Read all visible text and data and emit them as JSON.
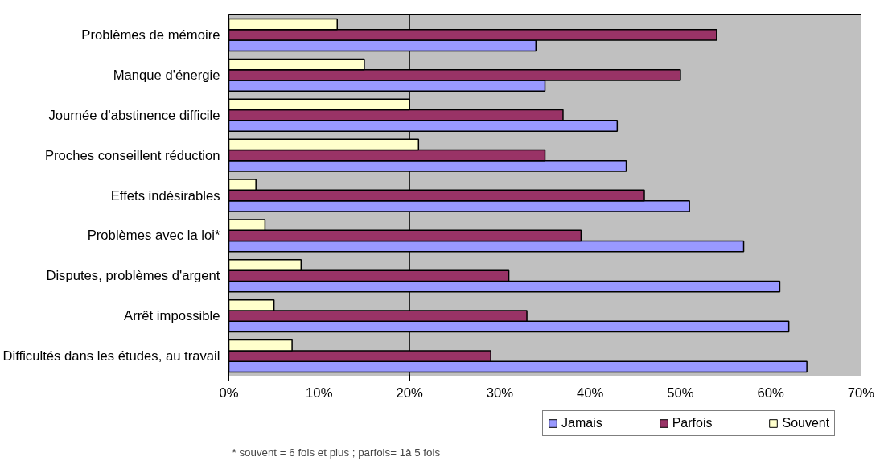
{
  "chart_data": {
    "type": "bar",
    "orientation": "horizontal",
    "categories": [
      "Problèmes de mémoire",
      "Manque d'énergie",
      "Journée d'abstinence difficile",
      "Proches conseillent réduction",
      "Effets indésirables",
      "Problèmes avec la loi*",
      "Disputes, problèmes d'argent",
      "Arrêt impossible",
      "Difficultés dans les études, au travail"
    ],
    "series": [
      {
        "name": "Jamais",
        "color": "#9999ff",
        "values": [
          34,
          35,
          43,
          44,
          51,
          57,
          61,
          62,
          64
        ]
      },
      {
        "name": "Parfois",
        "color": "#993366",
        "values": [
          54,
          50,
          37,
          35,
          46,
          39,
          31,
          33,
          29
        ]
      },
      {
        "name": "Souvent",
        "color": "#ffffcc",
        "values": [
          12,
          15,
          20,
          21,
          3,
          4,
          8,
          5,
          7
        ]
      }
    ],
    "xlim": [
      0,
      70
    ],
    "xticks": [
      {
        "value": 0,
        "label": "0%"
      },
      {
        "value": 10,
        "label": "10%"
      },
      {
        "value": 20,
        "label": "20%"
      },
      {
        "value": 30,
        "label": "30%"
      },
      {
        "value": 40,
        "label": "40%"
      },
      {
        "value": 50,
        "label": "50%"
      },
      {
        "value": 60,
        "label": "60%"
      },
      {
        "value": 70,
        "label": "70%"
      }
    ],
    "grid": "x",
    "legend": "bottom",
    "annotations": [
      "* souvent = 6 fois et plus ; parfois= 1à 5 fois"
    ]
  }
}
